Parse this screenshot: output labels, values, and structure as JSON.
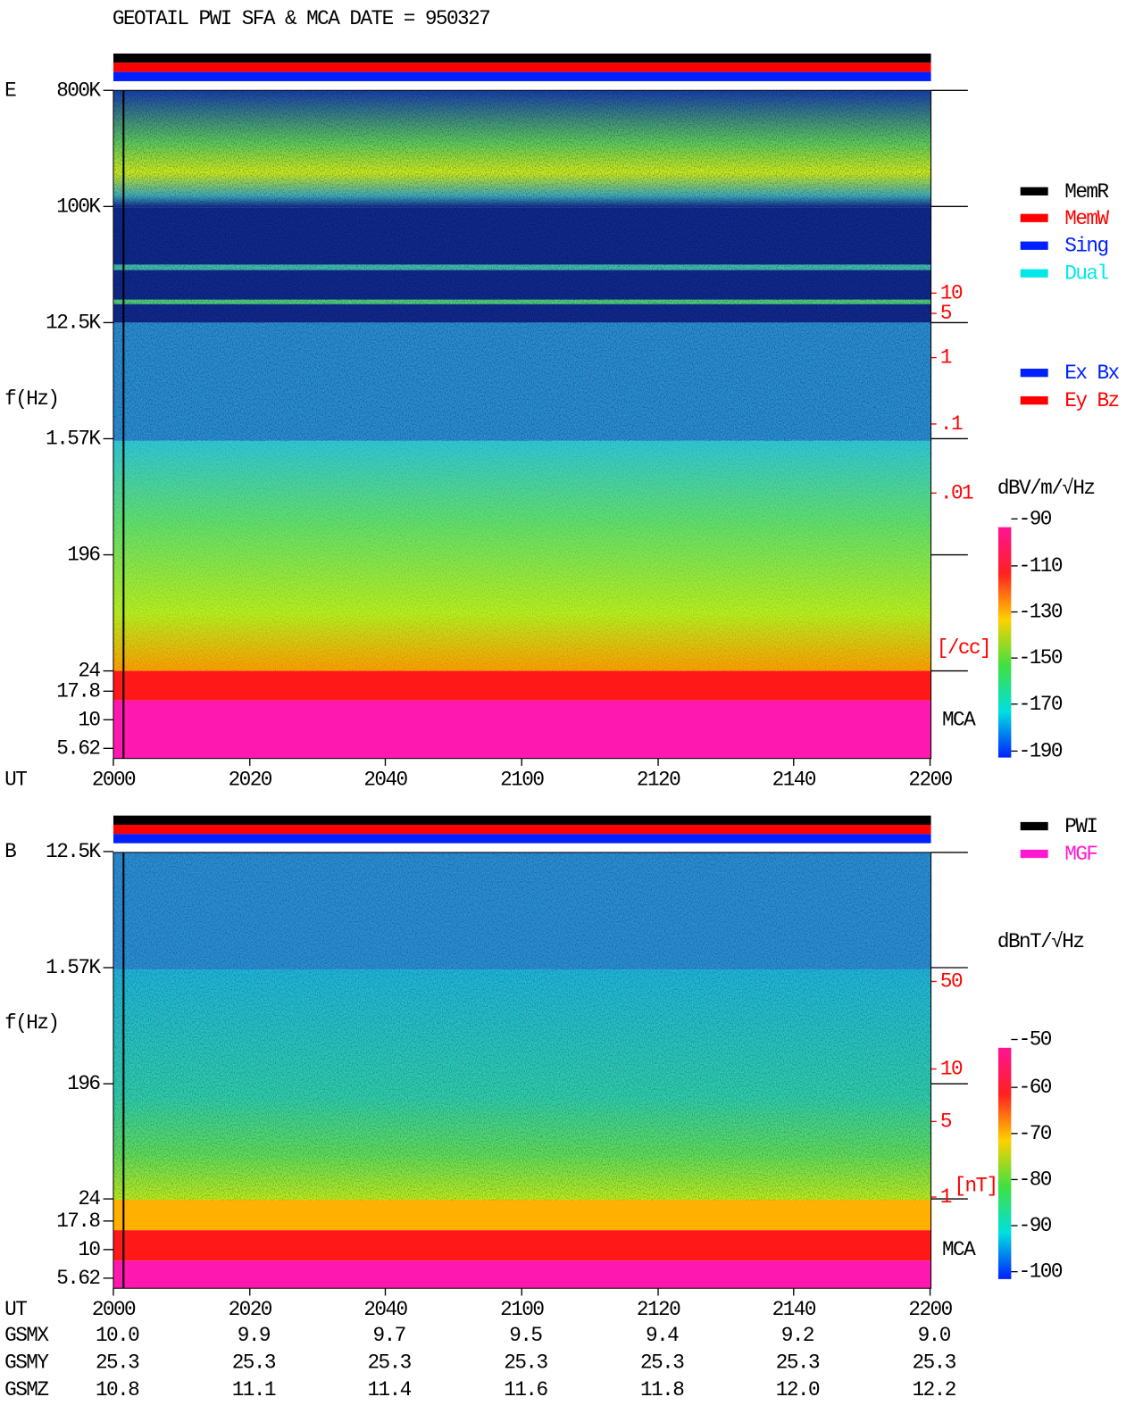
{
  "title": "GEOTAIL  PWI SFA & MCA   DATE = 950327",
  "panels": [
    {
      "label": "E",
      "ylabel": "f(Hz)",
      "yticks": [
        "800K",
        "100K",
        "12.5K",
        "1.57K",
        "196",
        "24",
        "17.8",
        "10",
        "5.62"
      ],
      "right_scale": [
        "10",
        "5",
        "1",
        ".1",
        ".01"
      ],
      "right_unit": "[/cc]",
      "mca": "MCA",
      "colorbar": {
        "unit": "dBV/m/√Hz",
        "labels": [
          "-90",
          "-110",
          "-130",
          "-150",
          "-170",
          "-190"
        ]
      }
    },
    {
      "label": "B",
      "ylabel": "f(Hz)",
      "yticks": [
        "12.5K",
        "1.57K",
        "196",
        "24",
        "17.8",
        "10",
        "5.62"
      ],
      "right_scale": [
        "50",
        "10",
        "5",
        "1"
      ],
      "right_unit": "[nT]",
      "mca": "MCA",
      "colorbar": {
        "unit": "dBnT/√Hz",
        "labels": [
          "-50",
          "-60",
          "-70",
          "-80",
          "-90",
          "-100"
        ]
      }
    }
  ],
  "legend_mode": [
    "MemR",
    "MemW",
    "Sing",
    "Dual"
  ],
  "legend_component": [
    "Ex Bx",
    "Ey Bz"
  ],
  "legend_source": [
    "PWI",
    "MGF"
  ],
  "x_axis": {
    "label": "UT",
    "ticks": [
      "2000",
      "2020",
      "2040",
      "2100",
      "2120",
      "2140",
      "2200"
    ]
  },
  "orbit": [
    {
      "name": "GSMX",
      "values": [
        "10.0",
        "9.9",
        "9.7",
        "9.5",
        "9.4",
        "9.2",
        "9.0"
      ]
    },
    {
      "name": "GSMY",
      "values": [
        "25.3",
        "25.3",
        "25.3",
        "25.3",
        "25.3",
        "25.3",
        "25.3"
      ]
    },
    {
      "name": "GSMZ",
      "values": [
        "10.8",
        "11.1",
        "11.4",
        "11.6",
        "11.8",
        "12.0",
        "12.2"
      ]
    }
  ]
}
